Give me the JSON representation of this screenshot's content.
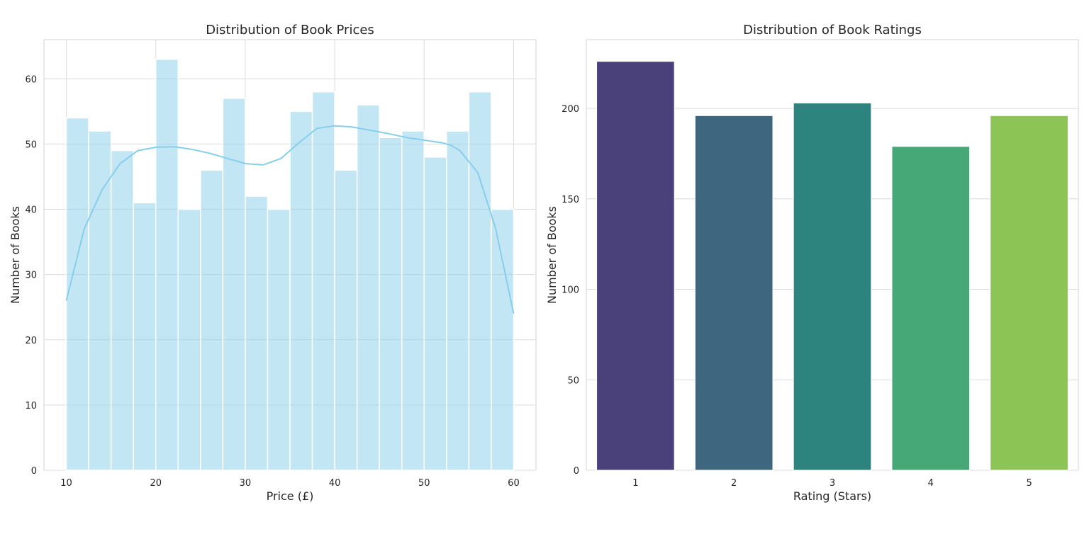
{
  "chart_data": [
    {
      "type": "histogram",
      "title": "Distribution of Book Prices",
      "xlabel": "Price (£)",
      "ylabel": "Number of Books",
      "xlim": [
        7.5,
        62.5
      ],
      "ylim": [
        0,
        66
      ],
      "xticks": [
        10,
        20,
        30,
        40,
        50,
        60
      ],
      "yticks": [
        0,
        10,
        20,
        30,
        40,
        50,
        60
      ],
      "grid": true,
      "bar_color": "#87CEEB",
      "bar_opacity": 0.5,
      "bins": [
        {
          "x0": 10.0,
          "x1": 12.5,
          "count": 54
        },
        {
          "x0": 12.5,
          "x1": 15.0,
          "count": 52
        },
        {
          "x0": 15.0,
          "x1": 17.5,
          "count": 49
        },
        {
          "x0": 17.5,
          "x1": 20.0,
          "count": 41
        },
        {
          "x0": 20.0,
          "x1": 22.5,
          "count": 63
        },
        {
          "x0": 22.5,
          "x1": 25.0,
          "count": 40
        },
        {
          "x0": 25.0,
          "x1": 27.5,
          "count": 46
        },
        {
          "x0": 27.5,
          "x1": 30.0,
          "count": 57
        },
        {
          "x0": 30.0,
          "x1": 32.5,
          "count": 42
        },
        {
          "x0": 32.5,
          "x1": 35.0,
          "count": 40
        },
        {
          "x0": 35.0,
          "x1": 37.5,
          "count": 55
        },
        {
          "x0": 37.5,
          "x1": 40.0,
          "count": 58
        },
        {
          "x0": 40.0,
          "x1": 42.5,
          "count": 46
        },
        {
          "x0": 42.5,
          "x1": 45.0,
          "count": 56
        },
        {
          "x0": 45.0,
          "x1": 47.5,
          "count": 51
        },
        {
          "x0": 47.5,
          "x1": 50.0,
          "count": 52
        },
        {
          "x0": 50.0,
          "x1": 52.5,
          "count": 48
        },
        {
          "x0": 52.5,
          "x1": 55.0,
          "count": 52
        },
        {
          "x0": 55.0,
          "x1": 57.5,
          "count": 58
        },
        {
          "x0": 57.5,
          "x1": 60.0,
          "count": 40
        }
      ],
      "kde": {
        "color": "#87CEEB",
        "x": [
          10,
          12,
          14,
          16,
          18,
          20,
          22,
          24,
          26,
          28,
          30,
          32,
          34,
          36,
          38,
          40,
          42,
          44,
          46,
          48,
          50,
          52,
          53,
          54,
          56,
          58,
          60
        ],
        "y": [
          26,
          37,
          43,
          47,
          49,
          49.5,
          49.6,
          49.2,
          48.6,
          47.8,
          47,
          46.8,
          47.8,
          50.2,
          52.4,
          52.8,
          52.6,
          52.1,
          51.6,
          51,
          50.6,
          50.2,
          49.8,
          49,
          45.6,
          37,
          24
        ]
      }
    },
    {
      "type": "bar",
      "title": "Distribution of Book Ratings",
      "xlabel": "Rating (Stars)",
      "ylabel": "Number of Books",
      "categories": [
        "1",
        "2",
        "3",
        "4",
        "5"
      ],
      "values": [
        226,
        196,
        203,
        179,
        196
      ],
      "colors": [
        "#4A417A",
        "#3E667F",
        "#2D837D",
        "#45A876",
        "#8CC556"
      ],
      "ylim": [
        0,
        238
      ],
      "yticks": [
        0,
        50,
        100,
        150,
        200
      ],
      "grid": true
    }
  ]
}
